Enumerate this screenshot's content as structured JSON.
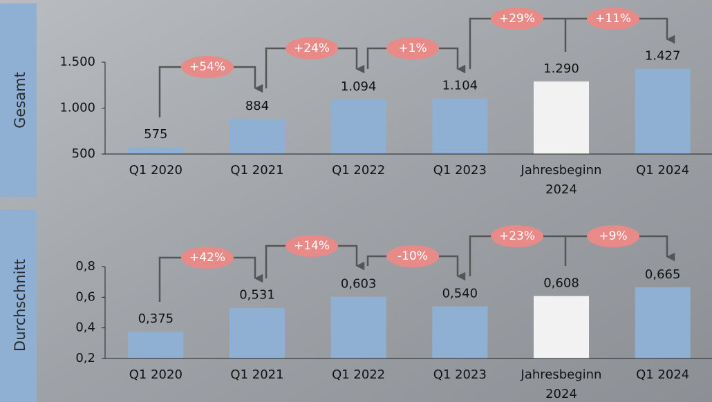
{
  "chart_data": [
    {
      "type": "bar",
      "ylabel": "Gesamt",
      "categories": [
        "Q1 2020",
        "Q1 2021",
        "Q1 2022",
        "Q1 2023",
        "Jahresbeginn 2024",
        "Q1 2024"
      ],
      "values": [
        575,
        884,
        1094,
        1104,
        1290,
        1427
      ],
      "value_labels": [
        "575",
        "884",
        "1.094",
        "1.104",
        "1.290",
        "1.427"
      ],
      "colors": [
        "#8fb0d3",
        "#8fb0d3",
        "#8fb0d3",
        "#8fb0d3",
        "#f2f2f2",
        "#8fb0d3"
      ],
      "ylim": [
        500,
        1500
      ],
      "yticks": [
        {
          "value": 500,
          "label": "500"
        },
        {
          "value": 1000,
          "label": "1.000"
        },
        {
          "value": 1500,
          "label": "1.500"
        }
      ],
      "annotations": [
        "+54%",
        "+24%",
        "+1%",
        "+29%",
        "+11%"
      ]
    },
    {
      "type": "bar",
      "ylabel": "Durchschnitt",
      "categories": [
        "Q1 2020",
        "Q1 2021",
        "Q1 2022",
        "Q1 2023",
        "Jahresbeginn 2024",
        "Q1 2024"
      ],
      "values": [
        0.375,
        0.531,
        0.603,
        0.54,
        0.608,
        0.665
      ],
      "value_labels": [
        "0,375",
        "0,531",
        "0,603",
        "0,540",
        "0,608",
        "0,665"
      ],
      "colors": [
        "#8fb0d3",
        "#8fb0d3",
        "#8fb0d3",
        "#8fb0d3",
        "#f2f2f2",
        "#8fb0d3"
      ],
      "ylim": [
        0.2,
        0.8
      ],
      "yticks": [
        {
          "value": 0.2,
          "label": "0,2"
        },
        {
          "value": 0.4,
          "label": "0,4"
        },
        {
          "value": 0.6,
          "label": "0,6"
        },
        {
          "value": 0.8,
          "label": "0,8"
        }
      ],
      "annotations": [
        "+42%",
        "+14%",
        "-10%",
        "+23%",
        "+9%"
      ]
    }
  ]
}
